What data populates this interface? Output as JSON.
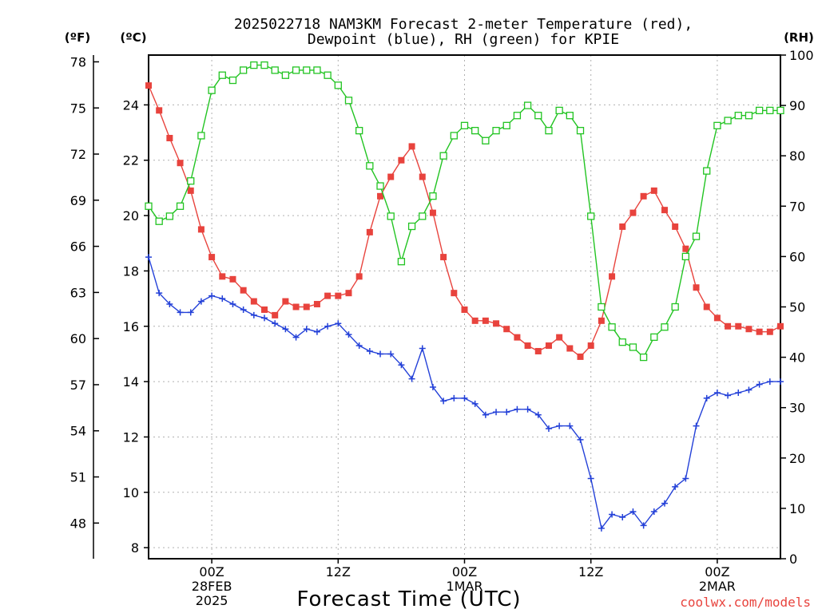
{
  "title_line1": "2025022718 NAM3KM Forecast 2-meter Temperature (red),",
  "title_line2": "Dewpoint (blue), RH (green) for KPIE",
  "unit_left_f": "(ºF)",
  "unit_left_c": "(ºC)",
  "unit_right_rh": "(RH)",
  "xlabel": "Forecast Time (UTC)",
  "credit": "coolwx.com/models",
  "colors": {
    "temperature": "#e8433d",
    "dewpoint": "#2340d8",
    "rh": "#22c422",
    "grid": "#b0b0b0"
  },
  "chart_data": {
    "type": "line",
    "x_unit": "forecast hour from 2025-02-27 18Z",
    "xlim": [
      0,
      60
    ],
    "ylim_celsius": [
      7.6,
      25.8
    ],
    "ylim_rh": [
      0,
      100
    ],
    "celsius_ticks": [
      8,
      10,
      12,
      14,
      16,
      18,
      20,
      22,
      24
    ],
    "fahrenheit_ticks": [
      48,
      51,
      54,
      57,
      60,
      63,
      66,
      69,
      72,
      75,
      78
    ],
    "rh_ticks": [
      0,
      10,
      20,
      30,
      40,
      50,
      60,
      70,
      80,
      90,
      100
    ],
    "x_ticks": [
      {
        "hour": 6,
        "lines": [
          "00Z",
          "28FEB",
          "2025"
        ]
      },
      {
        "hour": 18,
        "lines": [
          "12Z"
        ]
      },
      {
        "hour": 30,
        "lines": [
          "00Z",
          "1MAR"
        ]
      },
      {
        "hour": 42,
        "lines": [
          "12Z"
        ]
      },
      {
        "hour": 54,
        "lines": [
          "00Z",
          "2MAR"
        ]
      }
    ],
    "grid": true,
    "series": [
      {
        "name": "Temperature",
        "axis": "celsius",
        "marker": "filled-square",
        "x": [
          0,
          1,
          2,
          3,
          4,
          5,
          6,
          7,
          8,
          9,
          10,
          11,
          12,
          13,
          14,
          15,
          16,
          17,
          18,
          19,
          20,
          21,
          22,
          23,
          24,
          25,
          26,
          27,
          28,
          29,
          30,
          31,
          32,
          33,
          34,
          35,
          36,
          37,
          38,
          39,
          40,
          41,
          42,
          43,
          44,
          45,
          46,
          47,
          48,
          49,
          50,
          51,
          52,
          53,
          54,
          55,
          56,
          57,
          58,
          59,
          60
        ],
        "values": [
          24.7,
          23.8,
          22.8,
          21.9,
          20.9,
          19.5,
          18.5,
          17.8,
          17.7,
          17.3,
          16.9,
          16.6,
          16.4,
          16.9,
          16.7,
          16.7,
          16.8,
          17.1,
          17.1,
          17.2,
          17.8,
          19.4,
          20.7,
          21.4,
          22.0,
          22.5,
          21.4,
          20.1,
          18.5,
          17.2,
          16.6,
          16.2,
          16.2,
          16.1,
          15.9,
          15.6,
          15.3,
          15.1,
          15.3,
          15.6,
          15.2,
          14.9,
          15.3,
          16.2,
          17.8,
          19.6,
          20.1,
          20.7,
          20.9,
          20.2,
          19.6,
          18.8,
          17.4,
          16.7,
          16.3,
          16.0,
          16.0,
          15.9,
          15.8,
          15.8,
          16.0
        ]
      },
      {
        "name": "Dewpoint",
        "axis": "celsius",
        "marker": "plus",
        "x": [
          0,
          1,
          2,
          3,
          4,
          5,
          6,
          7,
          8,
          9,
          10,
          11,
          12,
          13,
          14,
          15,
          16,
          17,
          18,
          19,
          20,
          21,
          22,
          23,
          24,
          25,
          26,
          27,
          28,
          29,
          30,
          31,
          32,
          33,
          34,
          35,
          36,
          37,
          38,
          39,
          40,
          41,
          42,
          43,
          44,
          45,
          46,
          47,
          48,
          49,
          50,
          51,
          52,
          53,
          54,
          55,
          56,
          57,
          58,
          59,
          60
        ],
        "values": [
          18.5,
          17.2,
          16.8,
          16.5,
          16.5,
          16.9,
          17.1,
          17.0,
          16.8,
          16.6,
          16.4,
          16.3,
          16.1,
          15.9,
          15.6,
          15.9,
          15.8,
          16.0,
          16.1,
          15.7,
          15.3,
          15.1,
          15.0,
          15.0,
          14.6,
          14.1,
          15.2,
          13.8,
          13.3,
          13.4,
          13.4,
          13.2,
          12.8,
          12.9,
          12.9,
          13.0,
          13.0,
          12.8,
          12.3,
          12.4,
          12.4,
          11.9,
          10.5,
          8.7,
          9.2,
          9.1,
          9.3,
          8.8,
          9.3,
          9.6,
          10.2,
          10.5,
          12.4,
          13.4,
          13.6,
          13.5,
          13.6,
          13.7,
          13.9,
          14.0,
          14.0
        ]
      },
      {
        "name": "RH",
        "axis": "rh",
        "marker": "open-square",
        "x": [
          0,
          1,
          2,
          3,
          4,
          5,
          6,
          7,
          8,
          9,
          10,
          11,
          12,
          13,
          14,
          15,
          16,
          17,
          18,
          19,
          20,
          21,
          22,
          23,
          24,
          25,
          26,
          27,
          28,
          29,
          30,
          31,
          32,
          33,
          34,
          35,
          36,
          37,
          38,
          39,
          40,
          41,
          42,
          43,
          44,
          45,
          46,
          47,
          48,
          49,
          50,
          51,
          52,
          53,
          54,
          55,
          56,
          57,
          58,
          59,
          60
        ],
        "values": [
          70,
          67,
          68,
          70,
          75,
          84,
          93,
          96,
          95,
          97,
          98,
          98,
          97,
          96,
          97,
          97,
          97,
          96,
          94,
          91,
          85,
          78,
          74,
          68,
          59,
          66,
          68,
          72,
          80,
          84,
          86,
          85,
          83,
          85,
          86,
          88,
          90,
          88,
          85,
          89,
          88,
          85,
          68,
          50,
          46,
          43,
          42,
          40,
          44,
          46,
          50,
          60,
          64,
          77,
          86,
          87,
          88,
          88,
          89,
          89,
          89
        ]
      }
    ]
  }
}
